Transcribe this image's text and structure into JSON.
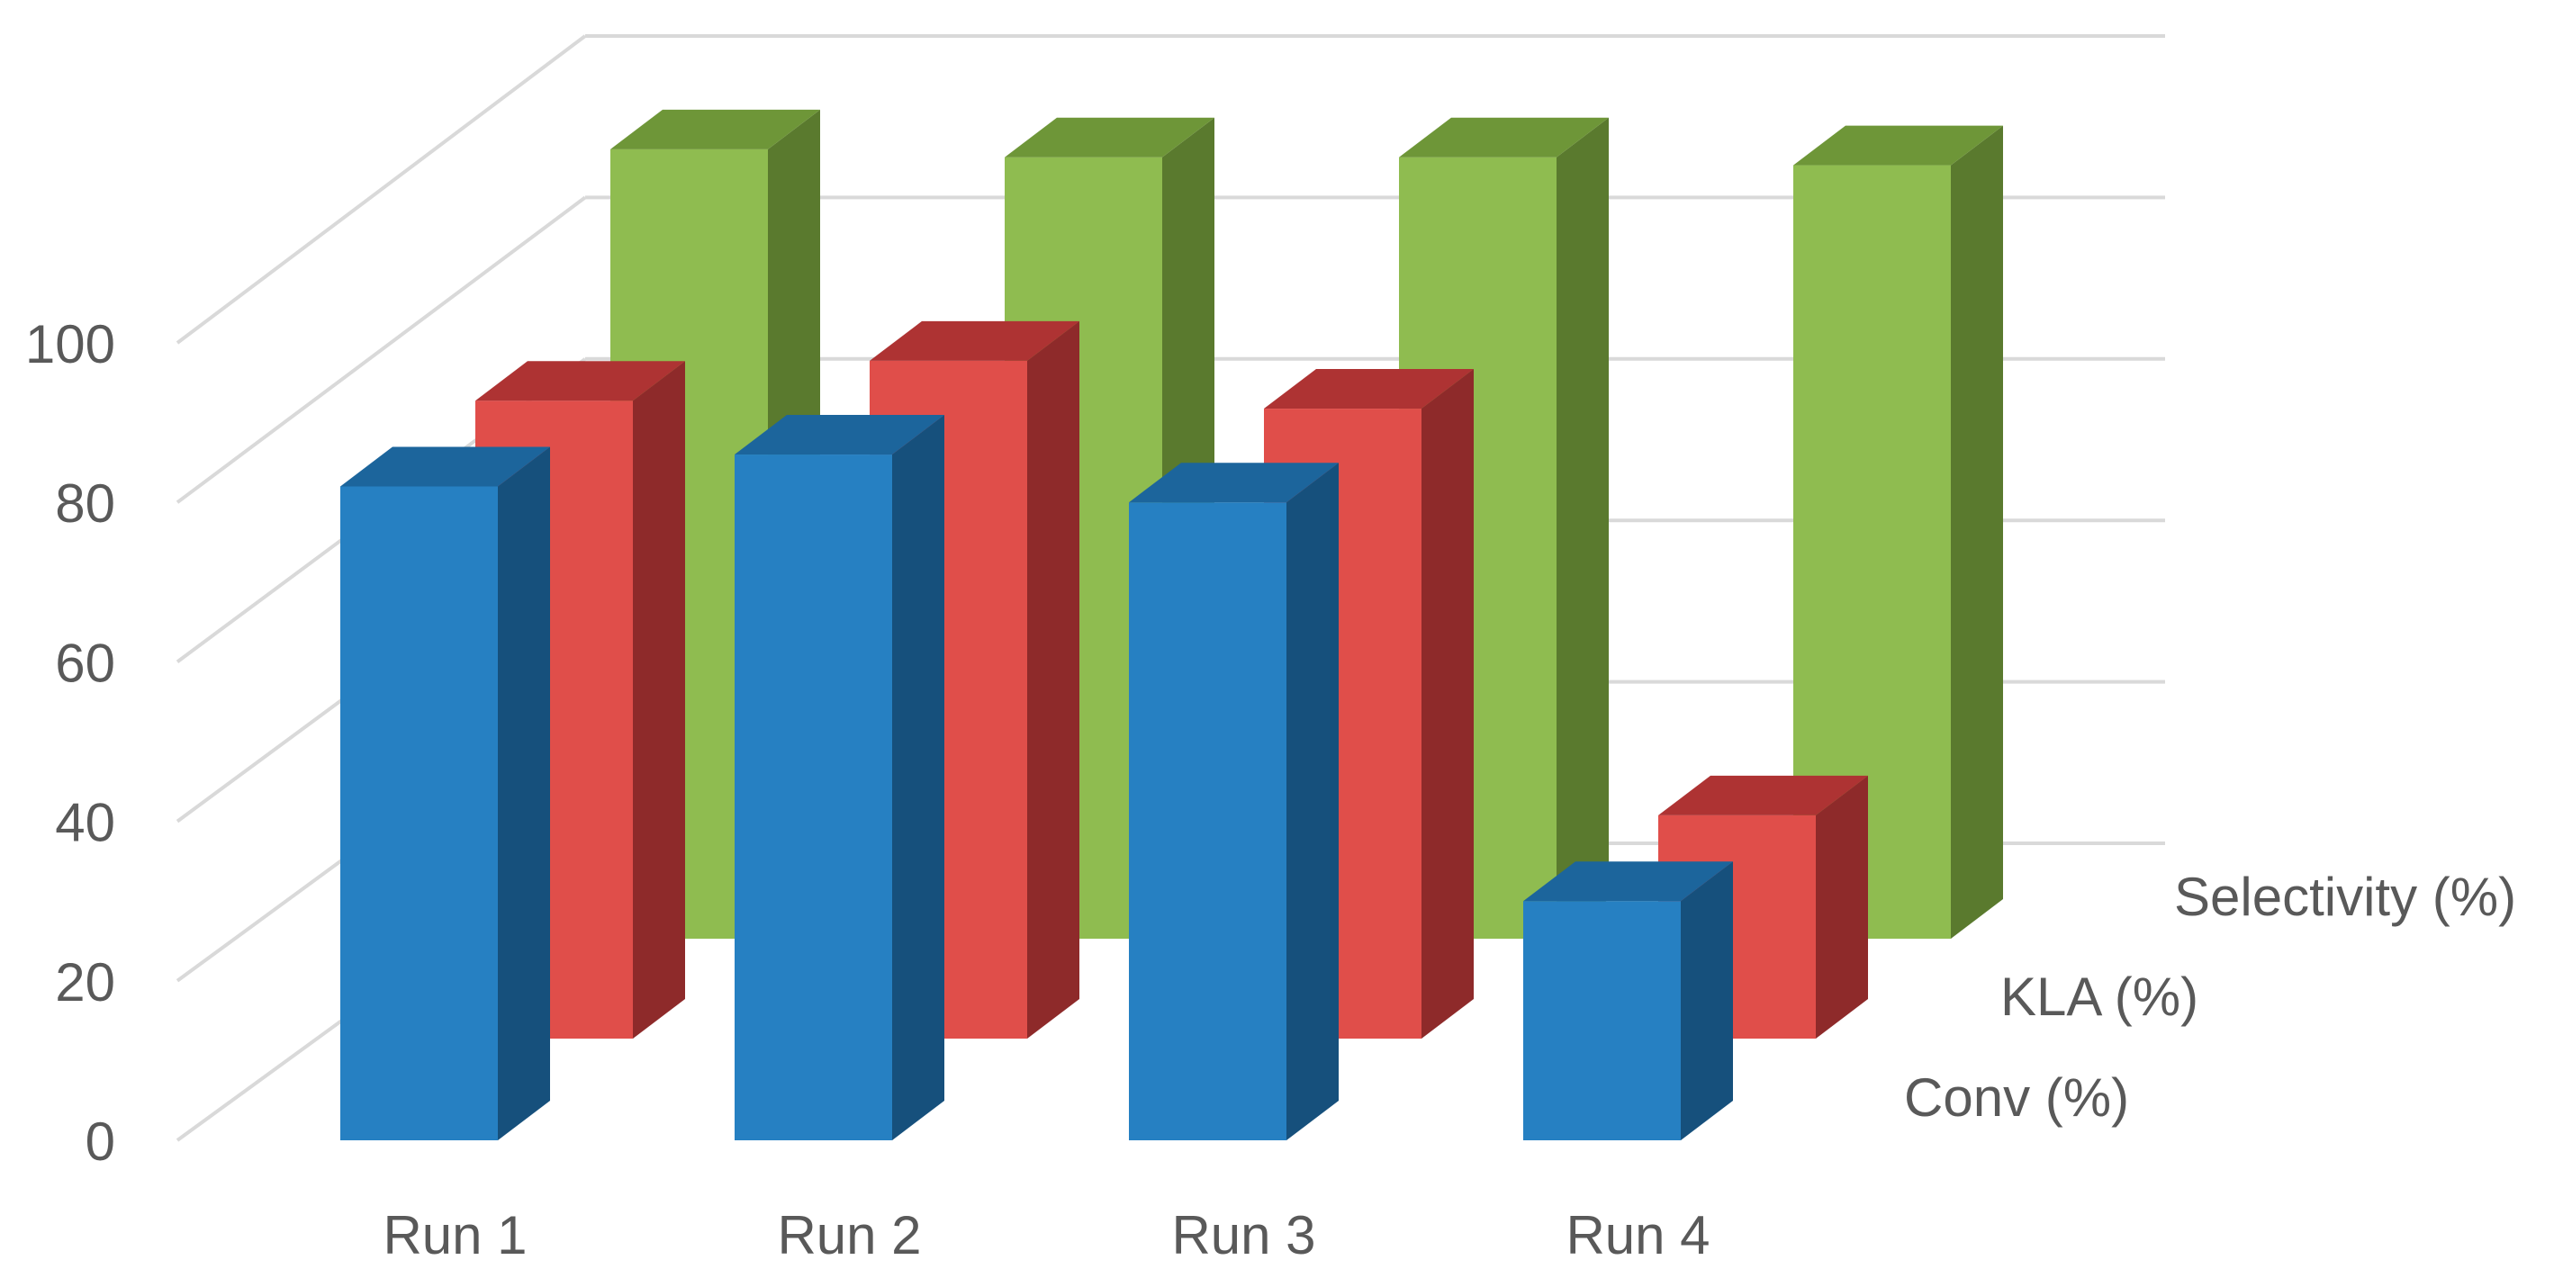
{
  "chart_data": {
    "type": "bar",
    "variant": "3d-column",
    "categories": [
      "Run 1",
      "Run 2",
      "Run 3",
      "Run 4"
    ],
    "series": [
      {
        "name": "Conv (%)",
        "values": [
          82,
          86,
          80,
          30
        ],
        "color": "#2680C2",
        "side_color": "#16507C",
        "top_color": "#1C659C"
      },
      {
        "name": "KLA (%)",
        "values": [
          80,
          85,
          79,
          28
        ],
        "color": "#E04E4A",
        "side_color": "#8E2A2A",
        "top_color": "#AE3333"
      },
      {
        "name": "Selectivity (%)",
        "values": [
          99,
          98,
          98,
          97
        ],
        "color": "#8FBC50",
        "side_color": "#5A7A2E",
        "top_color": "#6E9638"
      }
    ],
    "ylim": [
      0,
      100
    ],
    "yticks": [
      0,
      20,
      40,
      60,
      80,
      100
    ],
    "grid": true,
    "title": "",
    "xlabel": "",
    "ylabel": ""
  }
}
